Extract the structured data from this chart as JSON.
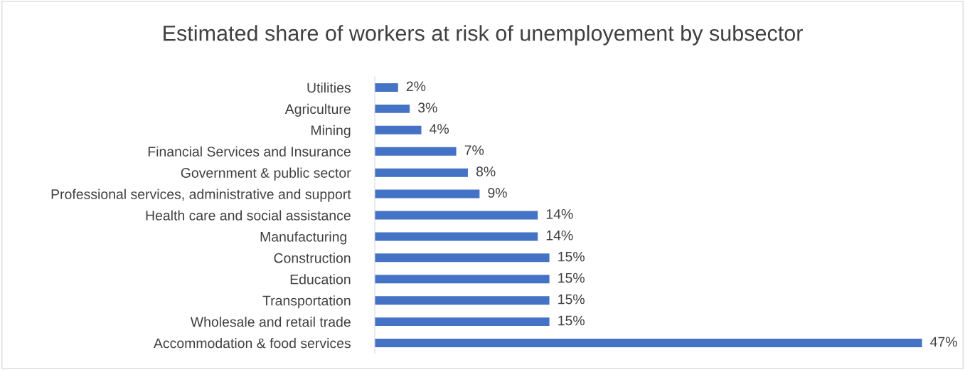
{
  "chart_data": {
    "type": "bar",
    "orientation": "horizontal",
    "title": "Estimated share of workers at risk of unemployement by subsector",
    "categories": [
      "Utilities",
      "Agriculture",
      "Mining",
      "Financial Services and Insurance",
      "Government & public sector",
      "Professional services, administrative and support",
      "Health care and social assistance",
      "Manufacturing ",
      "Construction",
      "Education",
      "Transportation",
      "Wholesale and retail trade",
      "Accommodation & food services"
    ],
    "values": [
      2,
      3,
      4,
      7,
      8,
      9,
      14,
      14,
      15,
      15,
      15,
      15,
      47
    ],
    "value_labels": [
      "2%",
      "3%",
      "4%",
      "7%",
      "8%",
      "9%",
      "14%",
      "14%",
      "15%",
      "15%",
      "15%",
      "15%",
      "47%"
    ],
    "color": "#4472c4",
    "grid": false,
    "legend": false
  }
}
